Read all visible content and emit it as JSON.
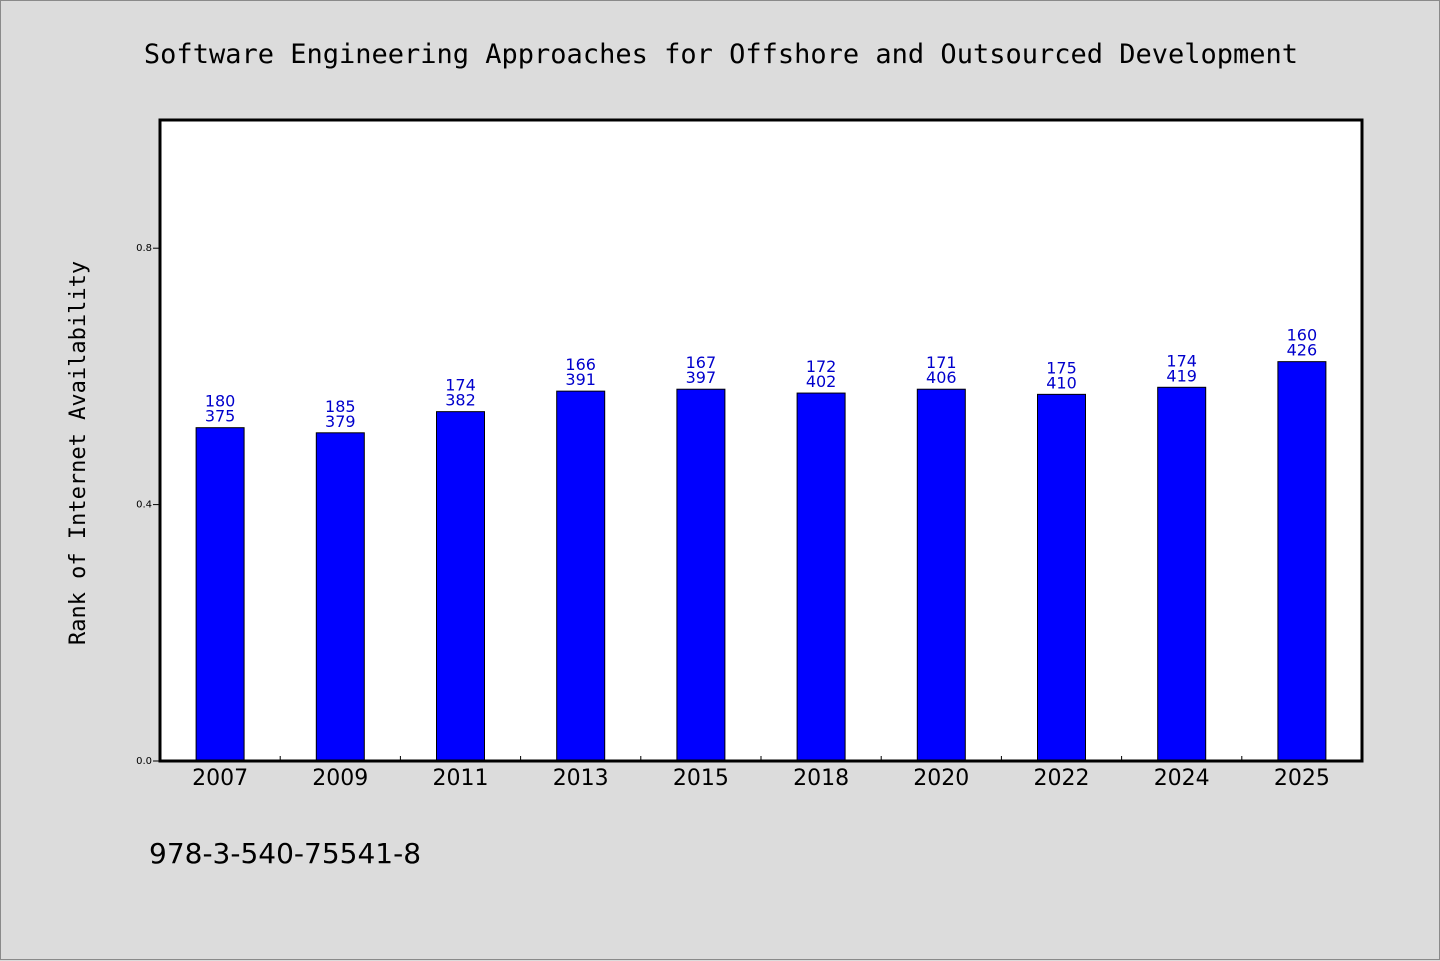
{
  "chart_data": {
    "type": "bar",
    "title": "Software Engineering Approaches for Offshore and Outsourced Development",
    "ylabel": "Rank of Internet Availability",
    "xlabel": "",
    "categories": [
      "2007",
      "2009",
      "2011",
      "2013",
      "2015",
      "2018",
      "2020",
      "2022",
      "2024",
      "2025"
    ],
    "values": [
      0.52,
      0.512,
      0.545,
      0.577,
      0.58,
      0.574,
      0.58,
      0.572,
      0.583,
      0.623
    ],
    "bar_labels_top": [
      "180",
      "185",
      "174",
      "166",
      "167",
      "172",
      "171",
      "175",
      "174",
      "160"
    ],
    "bar_labels_bottom": [
      "375",
      "379",
      "382",
      "391",
      "397",
      "402",
      "406",
      "410",
      "419",
      "426"
    ],
    "yticks": [
      "0.0",
      "0.4",
      "0.8"
    ],
    "ytick_values": [
      0.0,
      0.4,
      0.8
    ],
    "ylim": [
      0,
      1.0
    ],
    "grid": false,
    "legend": "none",
    "bar_color": "#0000ff",
    "label_color": "#0000cc",
    "background_color": "#dcdcdc",
    "plot_background_color": "#ffffff"
  },
  "footer": {
    "isbn": "978-3-540-75541-8"
  }
}
